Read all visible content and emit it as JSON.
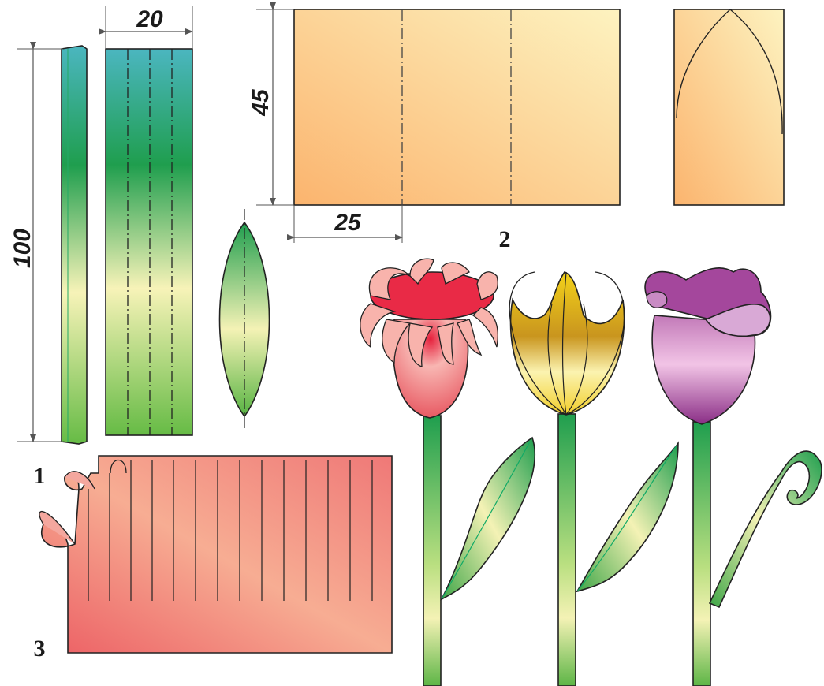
{
  "dimensions": {
    "strip_length": "100",
    "strip_width": "20",
    "sheet_height": "45",
    "sheet_segment": "25"
  },
  "step_labels": {
    "one": "1",
    "two": "2",
    "three": "3"
  },
  "colors": {
    "green": "#1f9e4e",
    "teal": "#4bb6c0",
    "pale_yellow": "#f7f3b8",
    "orange_sheet": "#fbc47e",
    "pink_sheet": "#ef7d79",
    "red_tulip": "#e85a63",
    "yellow_tulip": "#f3d21a",
    "purple_tulip": "#a4479c"
  }
}
